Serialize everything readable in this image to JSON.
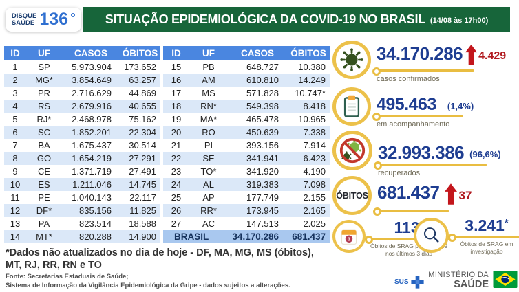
{
  "header": {
    "logo_line1": "DISQUE",
    "logo_line2": "SAÚDE",
    "logo_number": "136",
    "title": "SITUAÇÃO EPIDEMIOLÓGICA DA COVID-19 NO BRASIL",
    "datetime": "(14/08 às 17h00)"
  },
  "table": {
    "headers": [
      "ID",
      "UF",
      "CASOS",
      "ÓBITOS"
    ],
    "left_rows": [
      {
        "id": "1",
        "uf": "SP",
        "casos": "5.973.904",
        "obitos": "173.652"
      },
      {
        "id": "2",
        "uf": "MG*",
        "casos": "3.854.649",
        "obitos": "63.257"
      },
      {
        "id": "3",
        "uf": "PR",
        "casos": "2.716.629",
        "obitos": "44.869"
      },
      {
        "id": "4",
        "uf": "RS",
        "casos": "2.679.916",
        "obitos": "40.655"
      },
      {
        "id": "5",
        "uf": "RJ*",
        "casos": "2.468.978",
        "obitos": "75.162"
      },
      {
        "id": "6",
        "uf": "SC",
        "casos": "1.852.201",
        "obitos": "22.304"
      },
      {
        "id": "7",
        "uf": "BA",
        "casos": "1.675.437",
        "obitos": "30.514"
      },
      {
        "id": "8",
        "uf": "GO",
        "casos": "1.654.219",
        "obitos": "27.291"
      },
      {
        "id": "9",
        "uf": "CE",
        "casos": "1.371.719",
        "obitos": "27.491"
      },
      {
        "id": "10",
        "uf": "ES",
        "casos": "1.211.046",
        "obitos": "14.745"
      },
      {
        "id": "11",
        "uf": "PE",
        "casos": "1.040.143",
        "obitos": "22.117"
      },
      {
        "id": "12",
        "uf": "DF*",
        "casos": "835.156",
        "obitos": "11.825"
      },
      {
        "id": "13",
        "uf": "PA",
        "casos": "823.514",
        "obitos": "18.588"
      },
      {
        "id": "14",
        "uf": "MT*",
        "casos": "820.288",
        "obitos": "14.900"
      }
    ],
    "right_rows": [
      {
        "id": "15",
        "uf": "PB",
        "casos": "648.727",
        "obitos": "10.380"
      },
      {
        "id": "16",
        "uf": "AM",
        "casos": "610.810",
        "obitos": "14.249"
      },
      {
        "id": "17",
        "uf": "MS",
        "casos": "571.828",
        "obitos": "10.747*"
      },
      {
        "id": "18",
        "uf": "RN*",
        "casos": "549.398",
        "obitos": "8.418"
      },
      {
        "id": "19",
        "uf": "MA*",
        "casos": "465.478",
        "obitos": "10.965"
      },
      {
        "id": "20",
        "uf": "RO",
        "casos": "450.639",
        "obitos": "7.338"
      },
      {
        "id": "21",
        "uf": "PI",
        "casos": "393.156",
        "obitos": "7.914"
      },
      {
        "id": "22",
        "uf": "SE",
        "casos": "341.941",
        "obitos": "6.423"
      },
      {
        "id": "23",
        "uf": "TO*",
        "casos": "341.920",
        "obitos": "4.190"
      },
      {
        "id": "24",
        "uf": "AL",
        "casos": "319.383",
        "obitos": "7.098"
      },
      {
        "id": "25",
        "uf": "AP",
        "casos": "177.749",
        "obitos": "2.155"
      },
      {
        "id": "26",
        "uf": "RR*",
        "casos": "173.945",
        "obitos": "2.165"
      },
      {
        "id": "27",
        "uf": "AC",
        "casos": "147.513",
        "obitos": "2.025"
      }
    ],
    "total": {
      "label": "BRASIL",
      "casos": "34.170.286",
      "obitos": "681.437"
    }
  },
  "stats": [
    {
      "icon": "virus-icon",
      "value": "34.170.286",
      "delta": "4.429",
      "label": "casos confirmados"
    },
    {
      "icon": "clipboard-icon",
      "value": "495.463",
      "pct": "(1,4%)",
      "label": "em acompanhamento"
    },
    {
      "icon": "no-virus-icon",
      "value": "32.993.386",
      "pct": "(96,6%)",
      "label": "recuperados"
    },
    {
      "icon_label": "ÓBITOS",
      "value": "681.437",
      "delta": "37"
    }
  ],
  "srag": [
    {
      "icon": "calendar-icon",
      "value": "113",
      "asterisk": "*",
      "label": "Óbitos de SRAG por covid-19 nos últimos 3 dias"
    },
    {
      "icon": "magnifier-icon",
      "value": "3.241",
      "asterisk": "*",
      "label": "Óbitos de SRAG em investigação"
    }
  ],
  "calendar_day": "3",
  "notes": {
    "footnote_line1": "*Dados não atualizados no dia de hoje - DF, MA, MG, MS (óbitos),",
    "footnote_line2": "MT, RJ, RR, RN e TO",
    "fonte_line1": "Fonte: Secretarias Estaduais de Saúde;",
    "fonte_line2": "Sistema de Informação da Vigilância Epidemiológica da Gripe - dados sujeitos a alterações."
  },
  "footer": {
    "sus": "SUS",
    "ministry_line1": "MINISTÉRIO DA",
    "ministry_line2": "SAÚDE"
  },
  "colors": {
    "banner_green": "#17653a",
    "table_header_blue": "#4a86e0",
    "alt_row_blue": "#dbe8f8",
    "total_row_blue": "#a9c8ef",
    "value_navy": "#1e3d91",
    "alert_red": "#b11a1f",
    "accent_yellow": "#e9bd41",
    "label_gray": "#6f6a57"
  }
}
